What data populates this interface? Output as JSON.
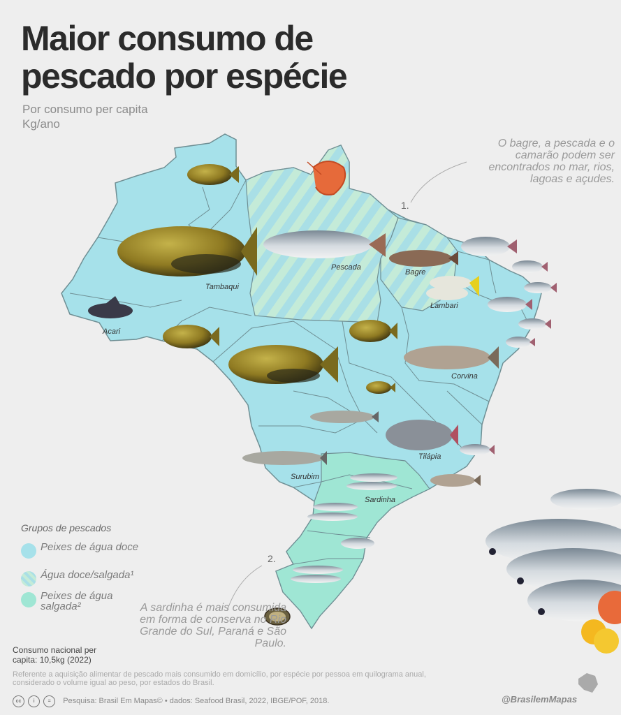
{
  "title": "Maior consumo de pescado por espécie",
  "subtitle": "Por consumo per capita Kg/ano",
  "notes": {
    "note1_num": "1.",
    "note1": "O bagre, a pescada e o camarão podem ser encontrados no mar, rios, lagoas e açudes.",
    "note2_num": "2.",
    "note2": "A sardinha é mais consumida em forma de conserva no Rio Grande do Sul, Paraná e São Paulo."
  },
  "species_labels": {
    "tambaqui": "Tambaqui",
    "pescada": "Pescada",
    "bagre": "Bagre",
    "lambari": "Lambari",
    "acari": "Acari",
    "corvina": "Corvina",
    "tilapia": "Tilápia",
    "surubim": "Surubim",
    "sardinha": "Sardinha"
  },
  "legend": {
    "title": "Grupos de pescados",
    "items": [
      {
        "label": "Peixes de água doce",
        "color": "#a6e1ea"
      },
      {
        "label": "Água doce/salgada¹",
        "color": "#b4e4e6"
      },
      {
        "label": "Peixes de água salgada²",
        "color": "#9fe6d4"
      }
    ]
  },
  "colors": {
    "freshwater": "#a6e1ea",
    "mixed": "#b4e4e6",
    "mixed_stripe": "#c8ecd6",
    "saltwater": "#9fe6d4",
    "border": "#6f8f94",
    "golden_fish": "#a08a2a",
    "silver_fish": "#9aa4ac"
  },
  "footer": {
    "consumo": "Consumo nacional per capita: 10,5kg (2022)",
    "footnote": "Referente a aquisição alimentar de pescado mais consumido em domicílio, por espécie por pessoa em quilograma anual, considerado o volume igual ao peso, por estados do Brasil.",
    "credits": "Pesquisa: Brasil Em Mapas© • dados: Seafood Brasil, 2022, IBGE/POF, 2018.",
    "handle": "@BrasilemMapas"
  }
}
